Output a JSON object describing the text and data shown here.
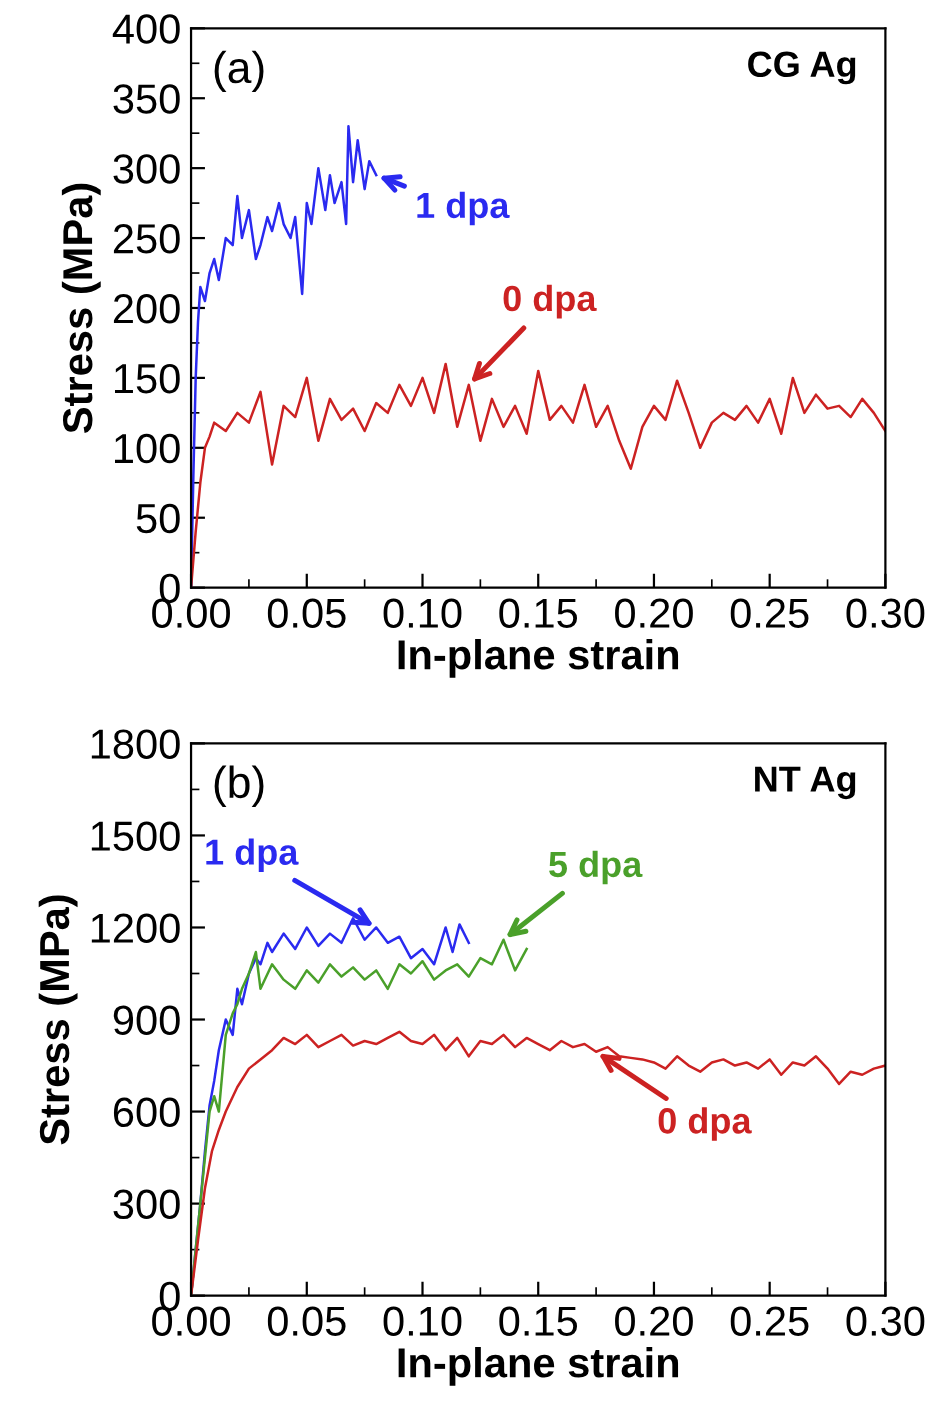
{
  "chart_data": [
    {
      "type": "line",
      "xlabel": "In-plane strain",
      "ylabel": "Stress (MPa)",
      "xlim": [
        0,
        0.3
      ],
      "xticks": [
        {
          "value": 0,
          "label": "0.00"
        },
        {
          "value": 0.05,
          "label": "0.05"
        },
        {
          "value": 0.1,
          "label": "0.10"
        },
        {
          "value": 0.15,
          "label": "0.15"
        },
        {
          "value": 0.2,
          "label": "0.20"
        },
        {
          "value": 0.25,
          "label": "0.25"
        },
        {
          "value": 0.3,
          "label": "0.30"
        }
      ],
      "ylim": [
        0,
        400
      ],
      "yticks": [
        0,
        50,
        100,
        150,
        200,
        250,
        300,
        350,
        400
      ],
      "grid": false,
      "marker": "none",
      "line_style": "solid",
      "annotations": [
        "(a)",
        "CG Ag",
        {
          "text": "1 dpa",
          "x": 0.08,
          "y": 295
        },
        {
          "text": "0 dpa",
          "x": 0.12,
          "y": 145
        }
      ],
      "series": [
        {
          "color": "#2a2af0",
          "x": [
            0,
            0.001,
            0.002,
            0.003,
            0.004,
            0.006,
            0.008,
            0.01,
            0.012,
            0.015,
            0.018,
            0.02,
            0.022,
            0.025,
            0.028,
            0.03,
            0.033,
            0.035,
            0.038,
            0.04,
            0.043,
            0.045,
            0.048,
            0.05,
            0.052,
            0.055,
            0.058,
            0.06,
            0.062,
            0.065,
            0.067,
            0.068,
            0.07,
            0.072,
            0.075,
            0.077,
            0.08
          ],
          "values": [
            0,
            80,
            150,
            190,
            215,
            205,
            225,
            235,
            220,
            250,
            245,
            280,
            250,
            270,
            235,
            245,
            265,
            255,
            275,
            260,
            250,
            265,
            210,
            275,
            260,
            300,
            270,
            295,
            275,
            290,
            260,
            330,
            290,
            320,
            285,
            305,
            295
          ]
        },
        {
          "color": "#cc2222",
          "x": [
            0,
            0.002,
            0.004,
            0.006,
            0.008,
            0.01,
            0.015,
            0.02,
            0.025,
            0.03,
            0.035,
            0.04,
            0.045,
            0.05,
            0.055,
            0.06,
            0.065,
            0.07,
            0.075,
            0.08,
            0.085,
            0.09,
            0.095,
            0.1,
            0.105,
            0.11,
            0.115,
            0.12,
            0.125,
            0.13,
            0.135,
            0.14,
            0.145,
            0.15,
            0.155,
            0.16,
            0.165,
            0.17,
            0.175,
            0.18,
            0.185,
            0.19,
            0.195,
            0.2,
            0.205,
            0.21,
            0.215,
            0.22,
            0.225,
            0.23,
            0.235,
            0.24,
            0.245,
            0.25,
            0.255,
            0.26,
            0.265,
            0.27,
            0.275,
            0.28,
            0.285,
            0.29,
            0.295,
            0.3
          ],
          "values": [
            0,
            40,
            75,
            100,
            108,
            118,
            112,
            125,
            118,
            140,
            88,
            130,
            122,
            150,
            105,
            135,
            120,
            128,
            112,
            132,
            125,
            145,
            130,
            150,
            125,
            160,
            115,
            145,
            105,
            135,
            115,
            130,
            110,
            155,
            120,
            130,
            118,
            145,
            115,
            130,
            105,
            85,
            115,
            130,
            120,
            148,
            125,
            100,
            118,
            125,
            120,
            130,
            118,
            135,
            110,
            150,
            125,
            138,
            128,
            130,
            122,
            135,
            125,
            112
          ]
        }
      ]
    },
    {
      "type": "line",
      "xlabel": "In-plane strain",
      "ylabel": "Stress (MPa)",
      "xlim": [
        0,
        0.3
      ],
      "xticks": [
        {
          "value": 0,
          "label": "0.00"
        },
        {
          "value": 0.05,
          "label": "0.05"
        },
        {
          "value": 0.1,
          "label": "0.10"
        },
        {
          "value": 0.15,
          "label": "0.15"
        },
        {
          "value": 0.2,
          "label": "0.20"
        },
        {
          "value": 0.25,
          "label": "0.25"
        },
        {
          "value": 0.3,
          "label": "0.30"
        }
      ],
      "ylim": [
        0,
        1800
      ],
      "yticks": [
        0,
        300,
        600,
        900,
        1200,
        1500,
        1800
      ],
      "grid": false,
      "marker": "none",
      "line_style": "solid",
      "annotations": [
        "(b)",
        "NT Ag",
        {
          "text": "1 dpa",
          "x": 0.08,
          "y": 1200
        },
        {
          "text": "5 dpa",
          "x": 0.135,
          "y": 1160
        },
        {
          "text": "0 dpa",
          "x": 0.175,
          "y": 795
        }
      ],
      "series": [
        {
          "color": "#2a2af0",
          "x": [
            0,
            0.002,
            0.004,
            0.006,
            0.008,
            0.01,
            0.012,
            0.015,
            0.018,
            0.02,
            0.022,
            0.025,
            0.028,
            0.03,
            0.033,
            0.035,
            0.04,
            0.045,
            0.05,
            0.055,
            0.06,
            0.065,
            0.07,
            0.075,
            0.08,
            0.085,
            0.09,
            0.095,
            0.1,
            0.105,
            0.11,
            0.113,
            0.116,
            0.12
          ],
          "values": [
            0,
            150,
            300,
            470,
            620,
            700,
            800,
            900,
            850,
            1000,
            950,
            1050,
            1100,
            1080,
            1150,
            1120,
            1180,
            1130,
            1200,
            1140,
            1180,
            1150,
            1230,
            1160,
            1200,
            1150,
            1170,
            1100,
            1130,
            1080,
            1200,
            1120,
            1210,
            1150
          ]
        },
        {
          "color": "#4aa02a",
          "x": [
            0,
            0.002,
            0.004,
            0.006,
            0.008,
            0.01,
            0.012,
            0.015,
            0.018,
            0.02,
            0.022,
            0.025,
            0.028,
            0.03,
            0.035,
            0.04,
            0.045,
            0.05,
            0.055,
            0.06,
            0.065,
            0.07,
            0.075,
            0.08,
            0.085,
            0.09,
            0.095,
            0.1,
            0.105,
            0.11,
            0.115,
            0.12,
            0.125,
            0.13,
            0.135,
            0.14,
            0.145
          ],
          "values": [
            0,
            150,
            300,
            450,
            600,
            650,
            600,
            850,
            920,
            950,
            1000,
            1050,
            1120,
            1000,
            1080,
            1030,
            1000,
            1060,
            1020,
            1080,
            1040,
            1070,
            1030,
            1060,
            1000,
            1080,
            1050,
            1090,
            1030,
            1060,
            1080,
            1040,
            1100,
            1080,
            1160,
            1060,
            1130
          ]
        },
        {
          "color": "#cc2222",
          "x": [
            0,
            0.003,
            0.006,
            0.009,
            0.012,
            0.015,
            0.02,
            0.025,
            0.03,
            0.035,
            0.04,
            0.045,
            0.05,
            0.055,
            0.06,
            0.065,
            0.07,
            0.075,
            0.08,
            0.085,
            0.09,
            0.095,
            0.1,
            0.105,
            0.11,
            0.115,
            0.12,
            0.125,
            0.13,
            0.135,
            0.14,
            0.145,
            0.15,
            0.155,
            0.16,
            0.165,
            0.17,
            0.175,
            0.18,
            0.185,
            0.19,
            0.195,
            0.2,
            0.205,
            0.21,
            0.215,
            0.22,
            0.225,
            0.23,
            0.235,
            0.24,
            0.245,
            0.25,
            0.255,
            0.26,
            0.265,
            0.27,
            0.275,
            0.28,
            0.285,
            0.29,
            0.295,
            0.3
          ],
          "values": [
            0,
            180,
            350,
            470,
            540,
            600,
            680,
            740,
            770,
            800,
            840,
            820,
            850,
            810,
            830,
            850,
            815,
            830,
            820,
            840,
            860,
            830,
            820,
            850,
            800,
            840,
            780,
            830,
            820,
            850,
            810,
            840,
            820,
            800,
            830,
            810,
            820,
            795,
            810,
            780,
            775,
            770,
            760,
            740,
            780,
            750,
            730,
            760,
            770,
            750,
            760,
            740,
            770,
            720,
            760,
            750,
            780,
            740,
            690,
            730,
            720,
            740,
            750
          ]
        }
      ]
    }
  ]
}
